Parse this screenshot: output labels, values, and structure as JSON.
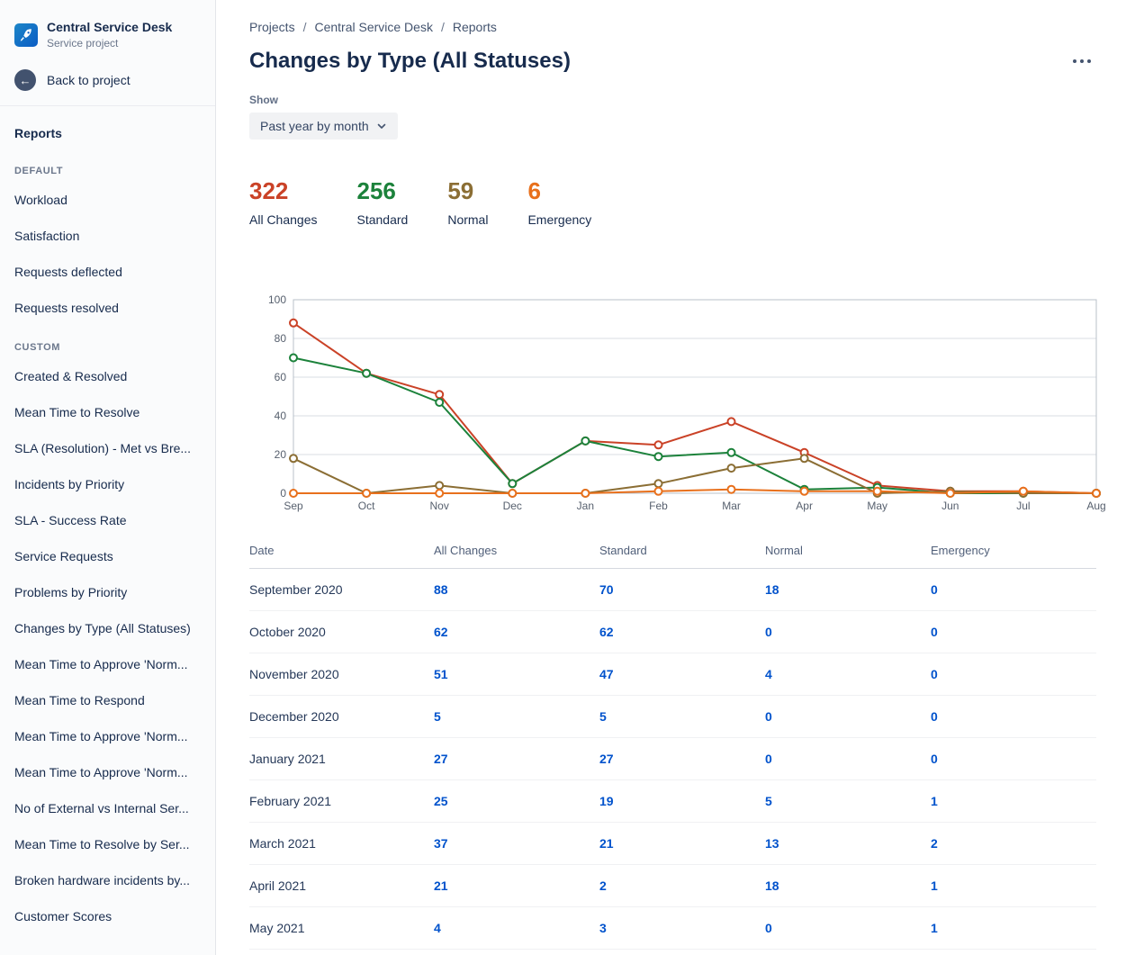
{
  "sidebar": {
    "project_name": "Central Service Desk",
    "project_type": "Service project",
    "back_label": "Back to project",
    "section_title": "Reports",
    "groups": [
      {
        "label": "DEFAULT",
        "items": [
          "Workload",
          "Satisfaction",
          "Requests deflected",
          "Requests resolved"
        ]
      },
      {
        "label": "CUSTOM",
        "items": [
          "Created & Resolved",
          "Mean Time to Resolve",
          "SLA (Resolution) - Met vs Bre...",
          "Incidents by Priority",
          "SLA - Success Rate",
          "Service Requests",
          "Problems by Priority",
          "Changes by Type (All Statuses)",
          "Mean Time to Approve 'Norm...",
          "Mean Time to Respond",
          "Mean Time to Approve 'Norm...",
          "Mean Time to Approve 'Norm...",
          "No of External vs Internal Ser...",
          "Mean Time to Resolve by Ser...",
          "Broken hardware incidents by...",
          "Customer Scores"
        ]
      }
    ]
  },
  "header": {
    "breadcrumb": [
      "Projects",
      "Central Service Desk",
      "Reports"
    ],
    "title": "Changes by Type (All Statuses)"
  },
  "controls": {
    "show_label": "Show",
    "period_selector": "Past year by month"
  },
  "stats": [
    {
      "value": "322",
      "label": "All Changes",
      "color": "#ca4227"
    },
    {
      "value": "256",
      "label": "Standard",
      "color": "#1c823b"
    },
    {
      "value": "59",
      "label": "Normal",
      "color": "#8b6e34"
    },
    {
      "value": "6",
      "label": "Emergency",
      "color": "#e8701c"
    }
  ],
  "chart_data": {
    "type": "line",
    "title": "Changes by Type (All Statuses) - past year by month",
    "categories": [
      "Sep",
      "Oct",
      "Nov",
      "Dec",
      "Jan",
      "Feb",
      "Mar",
      "Apr",
      "May",
      "Jun",
      "Jul",
      "Aug"
    ],
    "ylim": [
      0,
      100
    ],
    "yticks": [
      0,
      20,
      40,
      60,
      80,
      100
    ],
    "grid": true,
    "legend": "none",
    "marker": "open-circle",
    "series": [
      {
        "name": "All Changes",
        "color": "#ca4227",
        "values": [
          88,
          62,
          51,
          5,
          27,
          25,
          37,
          21,
          4,
          1,
          1,
          0
        ]
      },
      {
        "name": "Standard",
        "color": "#1c823b",
        "values": [
          70,
          62,
          47,
          5,
          27,
          19,
          21,
          2,
          3,
          0,
          0,
          0
        ]
      },
      {
        "name": "Normal",
        "color": "#8b6e34",
        "values": [
          18,
          0,
          4,
          0,
          0,
          5,
          13,
          18,
          0,
          1,
          0,
          0
        ]
      },
      {
        "name": "Emergency",
        "color": "#e8701c",
        "values": [
          0,
          0,
          0,
          0,
          0,
          1,
          2,
          1,
          1,
          0,
          1,
          0
        ]
      }
    ]
  },
  "table": {
    "columns": [
      "Date",
      "All Changes",
      "Standard",
      "Normal",
      "Emergency"
    ],
    "rows": [
      {
        "date": "September 2020",
        "values": [
          "88",
          "70",
          "18",
          "0"
        ]
      },
      {
        "date": "October 2020",
        "values": [
          "62",
          "62",
          "0",
          "0"
        ]
      },
      {
        "date": "November 2020",
        "values": [
          "51",
          "47",
          "4",
          "0"
        ]
      },
      {
        "date": "December 2020",
        "values": [
          "5",
          "5",
          "0",
          "0"
        ]
      },
      {
        "date": "January 2021",
        "values": [
          "27",
          "27",
          "0",
          "0"
        ]
      },
      {
        "date": "February 2021",
        "values": [
          "25",
          "19",
          "5",
          "1"
        ]
      },
      {
        "date": "March 2021",
        "values": [
          "37",
          "21",
          "13",
          "2"
        ]
      },
      {
        "date": "April 2021",
        "values": [
          "21",
          "2",
          "18",
          "1"
        ]
      },
      {
        "date": "May 2021",
        "values": [
          "4",
          "3",
          "0",
          "1"
        ]
      }
    ]
  }
}
